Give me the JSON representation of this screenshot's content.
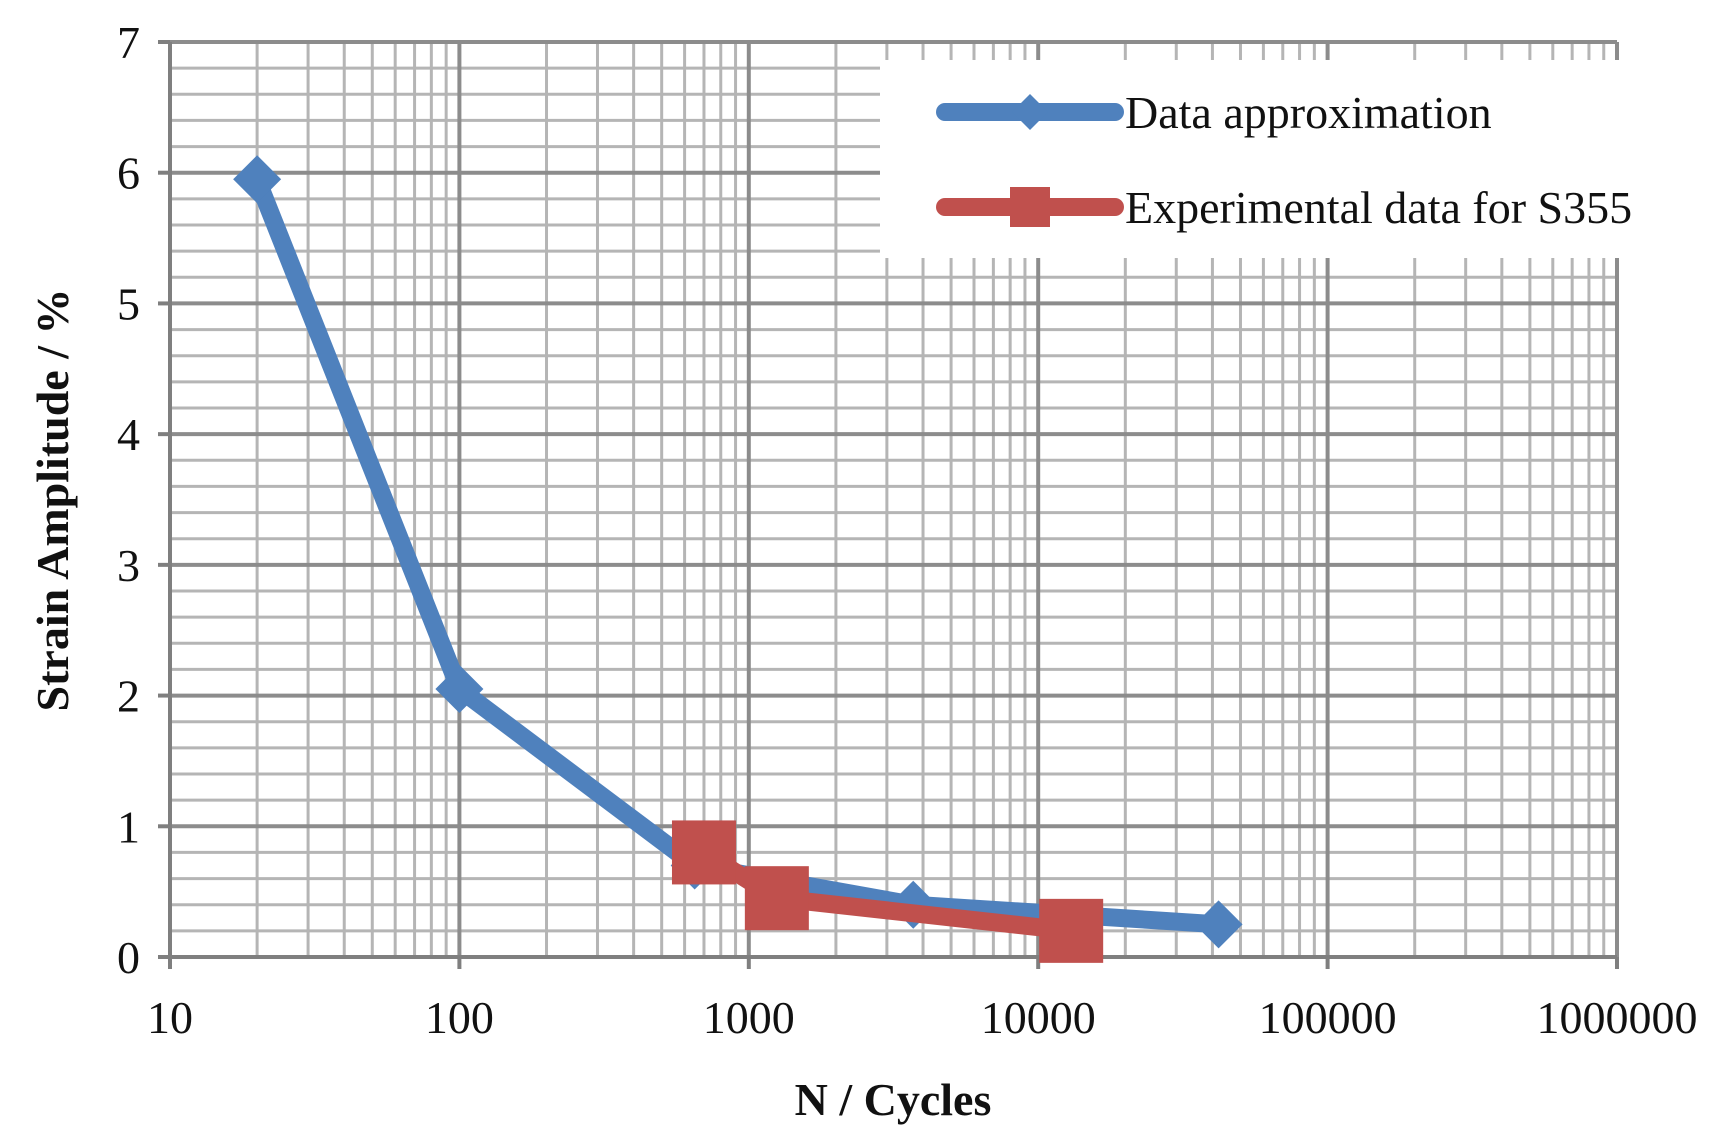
{
  "chart_data": {
    "type": "line",
    "title": "",
    "xlabel": "N / Cycles",
    "ylabel": "Strain Amplitude / %",
    "x_scale": "log",
    "xlim": [
      10,
      1000000
    ],
    "ylim": [
      0,
      7
    ],
    "x_ticks": [
      "10",
      "100",
      "1000",
      "10000",
      "100000",
      "1000000"
    ],
    "x_tick_values": [
      10,
      100,
      1000,
      10000,
      100000,
      1000000
    ],
    "y_ticks": [
      "0",
      "1",
      "2",
      "3",
      "4",
      "5",
      "6",
      "7"
    ],
    "y_tick_values": [
      0,
      1,
      2,
      3,
      4,
      5,
      6,
      7
    ],
    "grid": true,
    "y_minor_step": 0.2,
    "legend_position": "top-right",
    "series": [
      {
        "name": "Data approximation",
        "color": "#4F81BD",
        "marker": "diamond",
        "x": [
          20,
          100,
          650,
          3700,
          42000
        ],
        "y": [
          5.95,
          2.05,
          0.7,
          0.4,
          0.25
        ]
      },
      {
        "name": "Experimental data for S355",
        "color": "#C0504D",
        "marker": "square",
        "x": [
          700,
          1250,
          13000
        ],
        "y": [
          0.8,
          0.45,
          0.2
        ]
      }
    ]
  }
}
